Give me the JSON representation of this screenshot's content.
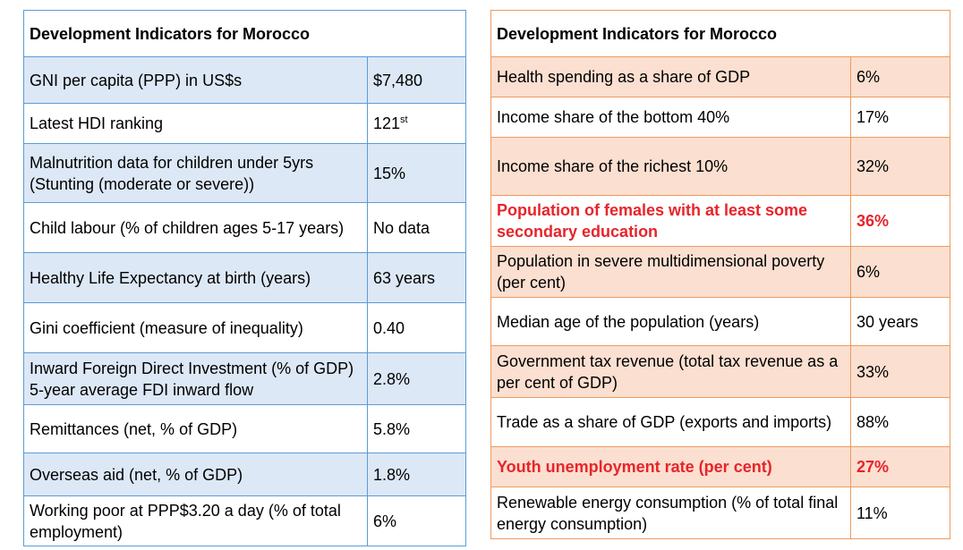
{
  "left_table": {
    "title": "Development Indicators for Morocco",
    "rows": [
      {
        "label": "GNI per capita (PPP) in US$s",
        "value": "$7,480"
      },
      {
        "label": "Latest HDI ranking",
        "value": "121",
        "value_sup": "st"
      },
      {
        "label": "Malnutrition data for children under 5yrs (Stunting (moderate or severe))",
        "value": "15%"
      },
      {
        "label": "Child labour (% of children ages 5-17 years)",
        "value": "No data"
      },
      {
        "label": "Healthy Life Expectancy at birth (years)",
        "value": "63 years"
      },
      {
        "label": "Gini coefficient (measure of inequality)",
        "value": "0.40"
      },
      {
        "label": "Inward Foreign Direct Investment (% of GDP) 5-year average FDI inward flow",
        "value": "2.8%"
      },
      {
        "label": "Remittances (net, % of GDP)",
        "value": "5.8%"
      },
      {
        "label": "Overseas aid (net, % of GDP)",
        "value": "1.8%"
      },
      {
        "label": "Working poor at PPP$3.20 a day (% of total employment)",
        "value": "6%"
      }
    ]
  },
  "right_table": {
    "title": "Development Indicators for Morocco",
    "rows": [
      {
        "label": "Health spending as a share of GDP",
        "value": "6%"
      },
      {
        "label": "Income share of the bottom 40%",
        "value": "17%"
      },
      {
        "label": "Income share of the richest 10%",
        "value": "32%"
      },
      {
        "label": "Population of females with at least some secondary education",
        "value": "36%"
      },
      {
        "label": "Population in severe multidimensional poverty (per cent)",
        "value": "6%"
      },
      {
        "label": "Median age of the population (years)",
        "value": "30 years"
      },
      {
        "label": "Government tax revenue (total tax revenue as a per cent of GDP)",
        "value": "33%"
      },
      {
        "label": "Trade as a share of GDP (exports and imports)",
        "value": "88%"
      },
      {
        "label": "Youth unemployment rate (per cent)",
        "value": "27%"
      },
      {
        "label": "Renewable energy consumption (% of total final energy consumption)",
        "value": "11%"
      }
    ]
  },
  "colors": {
    "left_border": "#5b9bd5",
    "left_shade": "#dde8f6",
    "right_border": "#ed9b5e",
    "right_shade": "#fbdfd0",
    "highlight_text": "#e8242a"
  }
}
